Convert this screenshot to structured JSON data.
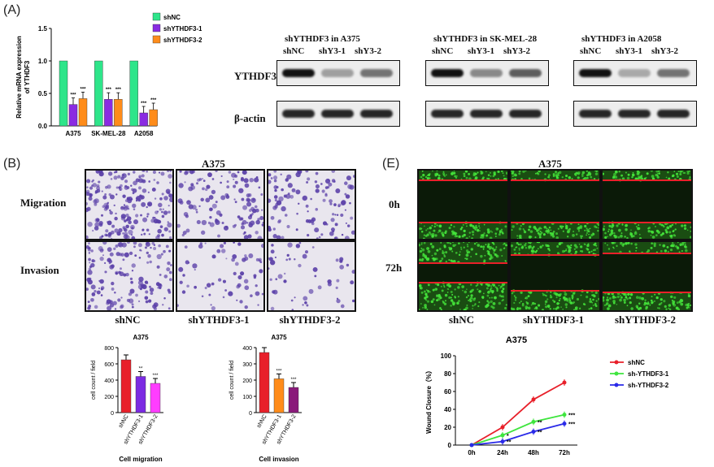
{
  "panel_labels": {
    "a": "(A)",
    "b": "(B)",
    "e": "(E)"
  },
  "qpcr": {
    "ylabel": "Relative mRNA expression of YTHDF3",
    "yticks": [
      "0.0",
      "0.5",
      "1.0",
      "1.5"
    ],
    "categories": [
      "A375",
      "SK-MEL-28",
      "A2058"
    ],
    "legend": [
      {
        "name": "shNC",
        "color": "#2ee58a"
      },
      {
        "name": "shYTHDF3-1",
        "color": "#8a2be2"
      },
      {
        "name": "shYTHDF3-2",
        "color": "#ff8c1a"
      }
    ],
    "sig": "***"
  },
  "western": {
    "row_labels": [
      "YTHDF3",
      "β-actin"
    ],
    "groups": [
      {
        "title": "shYTHDF3 in A375",
        "lanes": [
          "shNC",
          "shY3-1",
          "shY3-2"
        ]
      },
      {
        "title": "shYTHDF3 in SK-MEL-28",
        "lanes": [
          "shNC",
          "shY3-1",
          "shY3-2"
        ]
      },
      {
        "title": "shYTHDF3 in A2058",
        "lanes": [
          "shNC",
          "shY3-1",
          "shY3-2"
        ]
      }
    ]
  },
  "transwell": {
    "title": "A375",
    "rows": [
      "Migration",
      "Invasion"
    ],
    "cols": [
      "shNC",
      "shYTHDF3-1",
      "shYTHDF3-2"
    ]
  },
  "wound": {
    "title": "A375",
    "rows": [
      "0h",
      "72h"
    ],
    "cols": [
      "shNC",
      "shYTHDF3-1",
      "shYTHDF3-2"
    ]
  },
  "chart_data": [
    {
      "type": "bar",
      "title": "",
      "xlabel": "",
      "ylabel": "Relative mRNA expression of YTHDF3",
      "ylim": [
        0,
        1.5
      ],
      "categories": [
        "A375",
        "SK-MEL-28",
        "A2058"
      ],
      "series": [
        {
          "name": "shNC",
          "values": [
            1.0,
            1.0,
            1.0
          ]
        },
        {
          "name": "shYTHDF3-1",
          "values": [
            0.33,
            0.41,
            0.2
          ]
        },
        {
          "name": "shYTHDF3-2",
          "values": [
            0.42,
            0.41,
            0.25
          ]
        }
      ]
    },
    {
      "type": "bar",
      "title": "A375",
      "xlabel": "Cell migration",
      "ylabel": "cell count / field",
      "ylim": [
        0,
        800
      ],
      "yticks": [
        "0",
        "200",
        "400",
        "600",
        "800"
      ],
      "categories": [
        "shNC",
        "shYTHDF3-1",
        "shYTHDF3-2"
      ],
      "values": [
        650,
        445,
        360
      ],
      "colors": [
        "#e8202a",
        "#7b2be2",
        "#ff3dff"
      ],
      "sig": [
        "",
        "**",
        "***"
      ]
    },
    {
      "type": "bar",
      "title": "A375",
      "xlabel": "Cell invasion",
      "ylabel": "cell count / field",
      "ylim": [
        0,
        400
      ],
      "yticks": [
        "0",
        "100",
        "200",
        "300",
        "400"
      ],
      "categories": [
        "shNC",
        "shYTHDF3-1",
        "shYTHDF3-2"
      ],
      "values": [
        370,
        208,
        155
      ],
      "colors": [
        "#e8202a",
        "#ff8c1a",
        "#8a1a7a"
      ],
      "sig": [
        "",
        "***",
        "***"
      ]
    },
    {
      "type": "line",
      "title": "A375",
      "xlabel": "",
      "ylabel": "Wound Closure（%）",
      "ylim": [
        0,
        100
      ],
      "yticks": [
        "0",
        "20",
        "40",
        "60",
        "80",
        "100"
      ],
      "x": [
        "0h",
        "24h",
        "48h",
        "72h"
      ],
      "series": [
        {
          "name": "shNC",
          "color": "#e8202a",
          "values": [
            0,
            20,
            51,
            70
          ]
        },
        {
          "name": "sh-YTHDF3-1",
          "color": "#3ee53e",
          "values": [
            0,
            11,
            26,
            34
          ]
        },
        {
          "name": "sh-YTHDF3-2",
          "color": "#2a2ae8",
          "values": [
            0,
            4,
            15,
            24
          ]
        }
      ],
      "annotations": [
        "*",
        "**",
        "***",
        "**",
        "**",
        "***"
      ]
    }
  ]
}
